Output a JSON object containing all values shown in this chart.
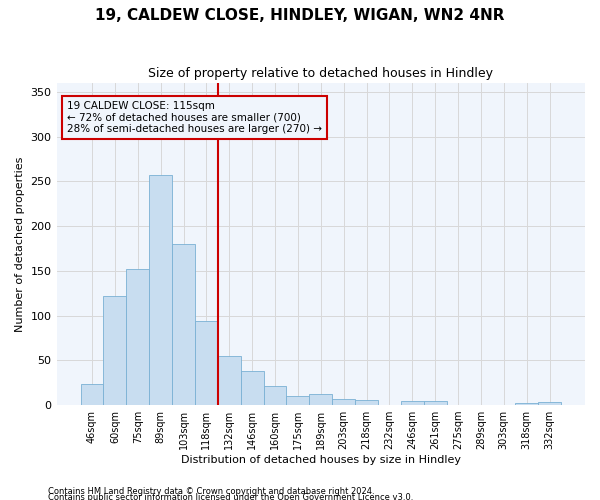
{
  "title_line1": "19, CALDEW CLOSE, HINDLEY, WIGAN, WN2 4NR",
  "title_line2": "Size of property relative to detached houses in Hindley",
  "xlabel": "Distribution of detached houses by size in Hindley",
  "ylabel": "Number of detached properties",
  "footer_line1": "Contains HM Land Registry data © Crown copyright and database right 2024.",
  "footer_line2": "Contains public sector information licensed under the Open Government Licence v3.0.",
  "bar_color": "#c8ddf0",
  "bar_edge_color": "#7ab0d4",
  "grid_color": "#d8d8d8",
  "background_color": "#ffffff",
  "plot_bg_color": "#f0f5fc",
  "annotation_box_edgecolor": "#cc0000",
  "vline_color": "#cc0000",
  "categories": [
    "46sqm",
    "60sqm",
    "75sqm",
    "89sqm",
    "103sqm",
    "118sqm",
    "132sqm",
    "146sqm",
    "160sqm",
    "175sqm",
    "189sqm",
    "203sqm",
    "218sqm",
    "232sqm",
    "246sqm",
    "261sqm",
    "275sqm",
    "289sqm",
    "303sqm",
    "318sqm",
    "332sqm"
  ],
  "values": [
    24,
    122,
    152,
    257,
    180,
    94,
    55,
    38,
    21,
    10,
    12,
    7,
    6,
    0,
    5,
    5,
    0,
    0,
    0,
    2,
    3
  ],
  "vline_x": 5.5,
  "annotation_line1": "19 CALDEW CLOSE: 115sqm",
  "annotation_line2": "← 72% of detached houses are smaller (700)",
  "annotation_line3": "28% of semi-detached houses are larger (270) →",
  "ylim_max": 360,
  "yticks": [
    0,
    50,
    100,
    150,
    200,
    250,
    300,
    350
  ],
  "title1_fontsize": 11,
  "title2_fontsize": 9,
  "ylabel_fontsize": 8,
  "xlabel_fontsize": 8,
  "tick_fontsize": 7,
  "annot_fontsize": 7.5,
  "footer_fontsize": 6
}
